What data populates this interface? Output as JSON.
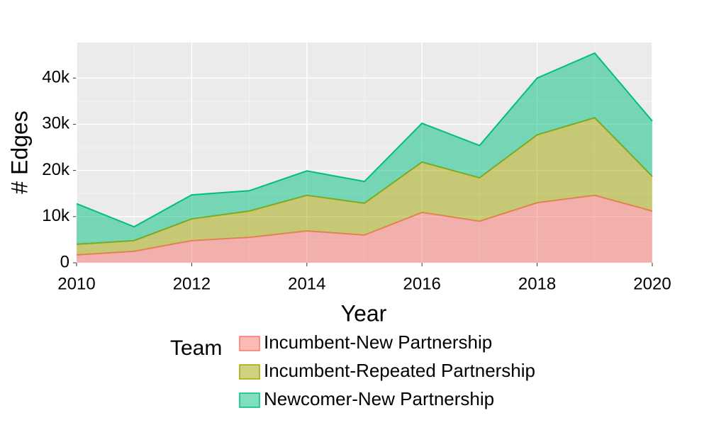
{
  "chart_data": {
    "type": "area",
    "stacked": true,
    "x_label": "Year",
    "y_label": "# Edges",
    "legend_title": "Team",
    "x": [
      2010,
      2011,
      2012,
      2013,
      2014,
      2015,
      2016,
      2017,
      2018,
      2019,
      2020
    ],
    "series": [
      {
        "name": "Incumbent-New Partnership",
        "color": "#F8766D",
        "values": [
          1700,
          2500,
          4800,
          5500,
          6900,
          6000,
          10900,
          9000,
          13000,
          14600,
          11200
        ]
      },
      {
        "name": "Incumbent-Repeated Partnership",
        "color": "#A3A500",
        "values": [
          2300,
          2300,
          4700,
          5700,
          7700,
          6900,
          10900,
          9400,
          14700,
          16800,
          7500
        ]
      },
      {
        "name": "Newcomer-New Partnership",
        "color": "#00BF7D",
        "values": [
          8800,
          3000,
          5200,
          4400,
          5300,
          4700,
          8400,
          7000,
          12300,
          14000,
          12000
        ]
      }
    ],
    "xlim": [
      2010,
      2020
    ],
    "xticks": [
      2010,
      2012,
      2014,
      2016,
      2018,
      2020
    ],
    "ylim": [
      0,
      47700
    ],
    "yticks": [
      0,
      {
        "value": 10000,
        "label": "10k"
      },
      {
        "value": 20000,
        "label": "20k"
      },
      {
        "value": 30000,
        "label": "30k"
      },
      {
        "value": 40000,
        "label": "40k"
      }
    ],
    "grid": true
  }
}
